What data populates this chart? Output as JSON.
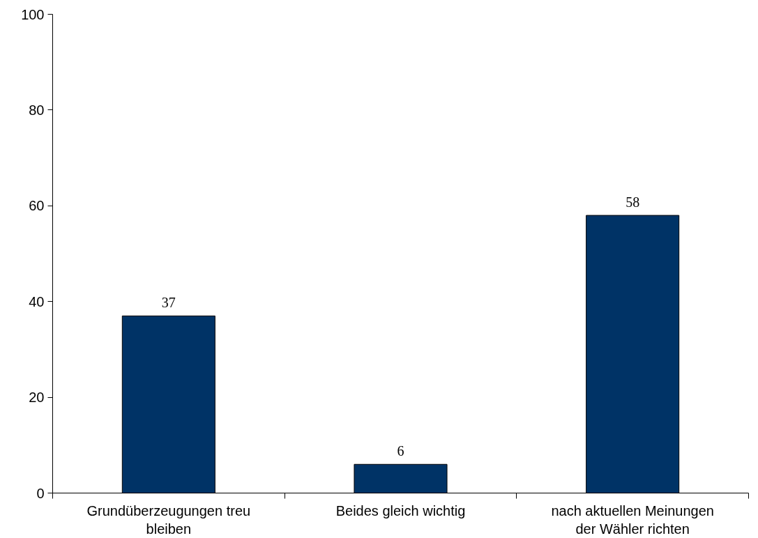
{
  "chart_data": {
    "type": "bar",
    "categories": [
      "Grundüberzeugungen treu bleiben",
      "Beides gleich wichtig",
      "nach aktuellen Meinungen der Wähler richten"
    ],
    "values": [
      37,
      6,
      58
    ],
    "color": "#003366",
    "ylim": [
      0,
      100
    ],
    "yticks": [
      0,
      20,
      40,
      60,
      80,
      100
    ],
    "grid": false,
    "data_labels": true
  }
}
